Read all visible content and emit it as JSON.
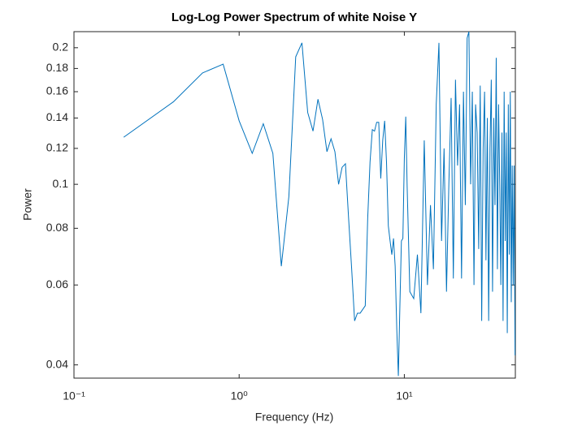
{
  "chart_data": {
    "type": "line",
    "title": "Log-Log Power Spectrum of white Noise Y",
    "xlabel": "Frequency (Hz)",
    "ylabel": "Power",
    "xscale": "log",
    "yscale": "log",
    "xlim": [
      0.1,
      47
    ],
    "ylim": [
      0.0374,
      0.217
    ],
    "xticks": [
      {
        "value": 0.1,
        "label": "10⁻¹"
      },
      {
        "value": 1,
        "label": "10⁰"
      },
      {
        "value": 10,
        "label": "10¹"
      }
    ],
    "yticks": [
      0.04,
      0.06,
      0.08,
      0.1,
      0.12,
      0.14,
      0.16,
      0.18,
      0.2
    ],
    "x": [
      0.2,
      0.4,
      0.6,
      0.8,
      1.0,
      1.2,
      1.4,
      1.6,
      1.8,
      2.0,
      2.2,
      2.4,
      2.6,
      2.8,
      3.0,
      3.2,
      3.4,
      3.6,
      3.8,
      4.0,
      4.2,
      4.4,
      4.6,
      4.8,
      5.0,
      5.2,
      5.4,
      5.6,
      5.8,
      6.0,
      6.2,
      6.4,
      6.6,
      6.8,
      7.0,
      7.2,
      7.4,
      7.6,
      7.8,
      8.0,
      8.2,
      8.4,
      8.6,
      8.8,
      9.0,
      9.2,
      9.4,
      9.6,
      9.8,
      10.0,
      10.2,
      10.4,
      10.8,
      11.4,
      12.0,
      12.6,
      13.2,
      13.8,
      14.4,
      15.0,
      15.6,
      16.2,
      16.8,
      17.4,
      18.0,
      18.6,
      19.2,
      19.8,
      20.4,
      21.0,
      21.6,
      22.2,
      22.8,
      23.4,
      24.0,
      24.6,
      25.2,
      25.8,
      26.4,
      27.0,
      27.6,
      28.2,
      28.8,
      29.4,
      30.0,
      30.6,
      31.2,
      31.8,
      32.4,
      33.0,
      33.6,
      34.2,
      34.8,
      35.4,
      36.0,
      36.6,
      37.2,
      37.8,
      38.4,
      39.0,
      39.6,
      40.2,
      40.8,
      41.4,
      42.0,
      42.6,
      43.2,
      43.8,
      44.4,
      45.0,
      45.6,
      46.2,
      46.8
    ],
    "series": [
      {
        "color": "#0072bd",
        "values": [
          0.127,
          0.152,
          0.176,
          0.184,
          0.138,
          0.117,
          0.136,
          0.117,
          0.066,
          0.094,
          0.191,
          0.205,
          0.144,
          0.131,
          0.154,
          0.139,
          0.118,
          0.126,
          0.118,
          0.1,
          0.109,
          0.111,
          0.084,
          0.065,
          0.05,
          0.052,
          0.052,
          0.053,
          0.054,
          0.084,
          0.112,
          0.132,
          0.131,
          0.137,
          0.137,
          0.103,
          0.125,
          0.138,
          0.112,
          0.081,
          0.075,
          0.07,
          0.076,
          0.066,
          0.048,
          0.0378,
          0.054,
          0.075,
          0.076,
          0.114,
          0.141,
          0.099,
          0.058,
          0.056,
          0.07,
          0.052,
          0.125,
          0.06,
          0.09,
          0.065,
          0.15,
          0.205,
          0.075,
          0.12,
          0.058,
          0.1,
          0.155,
          0.062,
          0.17,
          0.11,
          0.15,
          0.062,
          0.16,
          0.09,
          0.21,
          0.217,
          0.1,
          0.16,
          0.06,
          0.15,
          0.13,
          0.072,
          0.165,
          0.05,
          0.12,
          0.16,
          0.068,
          0.14,
          0.05,
          0.12,
          0.17,
          0.058,
          0.14,
          0.09,
          0.19,
          0.065,
          0.15,
          0.1,
          0.06,
          0.13,
          0.05,
          0.16,
          0.075,
          0.13,
          0.047,
          0.15,
          0.07,
          0.16,
          0.055,
          0.11,
          0.06,
          0.11,
          0.042
        ]
      }
    ]
  }
}
